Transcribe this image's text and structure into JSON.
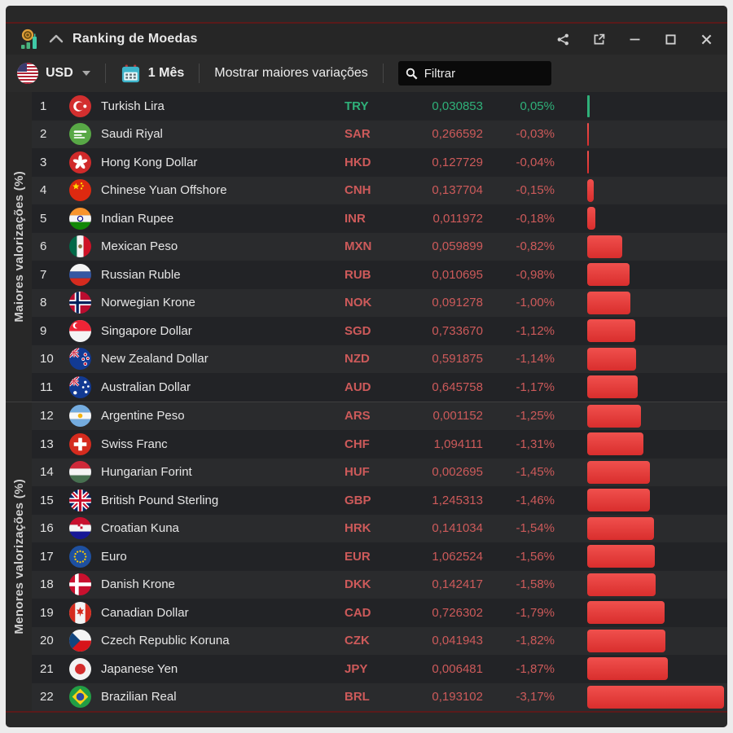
{
  "window": {
    "title": "Ranking de Moedas",
    "widget_icon": "currency-ranking-icon",
    "collapse_icon": "chevron-up-icon",
    "controls": [
      "share-icon",
      "open-in-new-window-icon",
      "minimize-icon",
      "maximize-icon",
      "close-icon"
    ]
  },
  "toolbar": {
    "currency_selector": {
      "flag": "us",
      "label": "USD"
    },
    "period": {
      "icon": "calendar-icon",
      "label": "1 Mês"
    },
    "toggle_label": "Mostrar maiores variações",
    "filter": {
      "icon": "search-icon",
      "placeholder": "Filtrar"
    }
  },
  "sections": {
    "top_label": "Maiores valorizações (%)",
    "bottom_label": "Menores valorizações (%)",
    "rows_per_section": 11
  },
  "colors": {
    "positive": "#2fb079",
    "negative": "#cd5a5a",
    "bar_red_top": "#f0504d",
    "bar_red_bottom": "#d92e2d",
    "bar_green": "#2fb079"
  },
  "rows": [
    {
      "rank": 1,
      "flag": "turkey",
      "name": "Turkish Lira",
      "code": "TRY",
      "value": "0,030853",
      "change": "0,05%",
      "pct": 0.05
    },
    {
      "rank": 2,
      "flag": "saudi",
      "name": "Saudi Riyal",
      "code": "SAR",
      "value": "0,266592",
      "change": "-0,03%",
      "pct": -0.03
    },
    {
      "rank": 3,
      "flag": "hongkong",
      "name": "Hong Kong Dollar",
      "code": "HKD",
      "value": "0,127729",
      "change": "-0,04%",
      "pct": -0.04
    },
    {
      "rank": 4,
      "flag": "china",
      "name": "Chinese Yuan Offshore",
      "code": "CNH",
      "value": "0,137704",
      "change": "-0,15%",
      "pct": -0.15
    },
    {
      "rank": 5,
      "flag": "india",
      "name": "Indian Rupee",
      "code": "INR",
      "value": "0,011972",
      "change": "-0,18%",
      "pct": -0.18
    },
    {
      "rank": 6,
      "flag": "mexico",
      "name": "Mexican Peso",
      "code": "MXN",
      "value": "0,059899",
      "change": "-0,82%",
      "pct": -0.82
    },
    {
      "rank": 7,
      "flag": "russia",
      "name": "Russian Ruble",
      "code": "RUB",
      "value": "0,010695",
      "change": "-0,98%",
      "pct": -0.98
    },
    {
      "rank": 8,
      "flag": "norway",
      "name": "Norwegian Krone",
      "code": "NOK",
      "value": "0,091278",
      "change": "-1,00%",
      "pct": -1.0
    },
    {
      "rank": 9,
      "flag": "singapore",
      "name": "Singapore Dollar",
      "code": "SGD",
      "value": "0,733670",
      "change": "-1,12%",
      "pct": -1.12
    },
    {
      "rank": 10,
      "flag": "newzealand",
      "name": "New Zealand Dollar",
      "code": "NZD",
      "value": "0,591875",
      "change": "-1,14%",
      "pct": -1.14
    },
    {
      "rank": 11,
      "flag": "australia",
      "name": "Australian Dollar",
      "code": "AUD",
      "value": "0,645758",
      "change": "-1,17%",
      "pct": -1.17
    },
    {
      "rank": 12,
      "flag": "argentina",
      "name": "Argentine Peso",
      "code": "ARS",
      "value": "0,001152",
      "change": "-1,25%",
      "pct": -1.25
    },
    {
      "rank": 13,
      "flag": "switzerland",
      "name": "Swiss Franc",
      "code": "CHF",
      "value": "1,094111",
      "change": "-1,31%",
      "pct": -1.31
    },
    {
      "rank": 14,
      "flag": "hungary",
      "name": "Hungarian Forint",
      "code": "HUF",
      "value": "0,002695",
      "change": "-1,45%",
      "pct": -1.45
    },
    {
      "rank": 15,
      "flag": "uk",
      "name": "British Pound Sterling",
      "code": "GBP",
      "value": "1,245313",
      "change": "-1,46%",
      "pct": -1.46
    },
    {
      "rank": 16,
      "flag": "croatia",
      "name": "Croatian Kuna",
      "code": "HRK",
      "value": "0,141034",
      "change": "-1,54%",
      "pct": -1.54
    },
    {
      "rank": 17,
      "flag": "eu",
      "name": "Euro",
      "code": "EUR",
      "value": "1,062524",
      "change": "-1,56%",
      "pct": -1.56
    },
    {
      "rank": 18,
      "flag": "denmark",
      "name": "Danish Krone",
      "code": "DKK",
      "value": "0,142417",
      "change": "-1,58%",
      "pct": -1.58
    },
    {
      "rank": 19,
      "flag": "canada",
      "name": "Canadian Dollar",
      "code": "CAD",
      "value": "0,726302",
      "change": "-1,79%",
      "pct": -1.79
    },
    {
      "rank": 20,
      "flag": "czech",
      "name": "Czech Republic Koruna",
      "code": "CZK",
      "value": "0,041943",
      "change": "-1,82%",
      "pct": -1.82
    },
    {
      "rank": 21,
      "flag": "japan",
      "name": "Japanese Yen",
      "code": "JPY",
      "value": "0,006481",
      "change": "-1,87%",
      "pct": -1.87
    },
    {
      "rank": 22,
      "flag": "brazil",
      "name": "Brazilian Real",
      "code": "BRL",
      "value": "0,193102",
      "change": "-3,17%",
      "pct": -3.17
    }
  ]
}
